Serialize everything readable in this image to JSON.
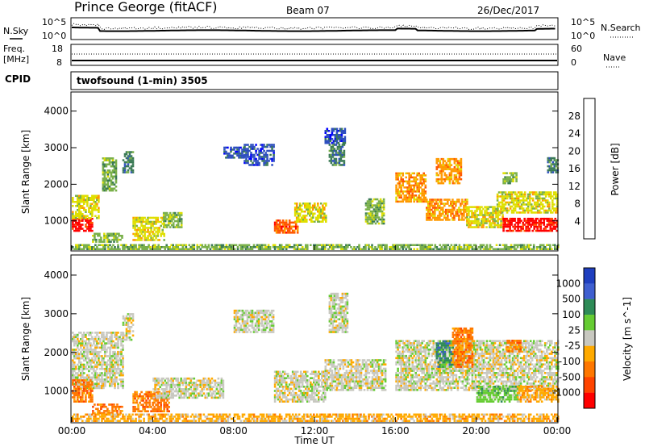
{
  "header": {
    "station": "Prince George (fitACF)",
    "beam": "Beam 07",
    "date": "26/Dec/2017"
  },
  "noise_panel": {
    "left_label": "N.Sky",
    "right_label": "N.Search",
    "left_ticks": [
      "10^5",
      "10^0"
    ],
    "right_ticks": [
      "10^5",
      "10^0"
    ]
  },
  "freq_panel": {
    "label_line1": "Freq.",
    "label_line2": "[MHz]",
    "left_ticks": [
      "18",
      "8"
    ],
    "right_label": "Nave",
    "right_ticks": [
      "60",
      "0"
    ]
  },
  "cpid": {
    "label": "CPID",
    "program": "twofsound (1-min) 3505"
  },
  "colors": {
    "background": "#ffffff",
    "gray_scatter": "#c8c8c0",
    "power_scale": [
      "#0000ff",
      "#2e4fbf",
      "#3a7a55",
      "#7ab04a",
      "#dfdf00",
      "#ff9900",
      "#ff5500",
      "#ff0000"
    ],
    "velocity_scale": [
      "#1f3fbf",
      "#3f5fd0",
      "#2e8b57",
      "#66cc33",
      "#c8c8c0",
      "#ffaa00",
      "#ff7700",
      "#ff4400",
      "#ff0000"
    ]
  },
  "chart_data": [
    {
      "type": "heatmap",
      "title": "Power",
      "ylabel": "Slant Range [km]",
      "y_ticks": [
        "1000",
        "2000",
        "3000",
        "4000"
      ],
      "ylim": [
        200,
        4500
      ],
      "colorbar_label": "Power [dB]",
      "colorbar_ticks": [
        "4",
        "8",
        "12",
        "16",
        "20",
        "24",
        "28"
      ],
      "regions": [
        {
          "t0": 0.0,
          "t1": 1.0,
          "r0": 700,
          "r1": 1050,
          "level": 7
        },
        {
          "t0": 0.0,
          "t1": 1.3,
          "r0": 1050,
          "r1": 1700,
          "level": 4
        },
        {
          "t0": 1.5,
          "t1": 2.2,
          "r0": 1800,
          "r1": 2700,
          "level": 3
        },
        {
          "t0": 1.0,
          "t1": 2.5,
          "r0": 400,
          "r1": 650,
          "level": 3
        },
        {
          "t0": 3.0,
          "t1": 4.6,
          "r0": 450,
          "r1": 1100,
          "level": 4
        },
        {
          "t0": 2.5,
          "t1": 3.0,
          "r0": 2300,
          "r1": 2900,
          "level": 2
        },
        {
          "t0": 4.5,
          "t1": 5.4,
          "r0": 800,
          "r1": 1200,
          "level": 3
        },
        {
          "t0": 8.5,
          "t1": 10.0,
          "r0": 2500,
          "r1": 3100,
          "level": 1
        },
        {
          "t0": 7.5,
          "t1": 8.5,
          "r0": 2700,
          "r1": 3000,
          "level": 1
        },
        {
          "t0": 10.0,
          "t1": 11.2,
          "r0": 650,
          "r1": 1000,
          "level": 6
        },
        {
          "t0": 11.0,
          "t1": 12.6,
          "r0": 950,
          "r1": 1500,
          "level": 4
        },
        {
          "t0": 12.7,
          "t1": 13.5,
          "r0": 2500,
          "r1": 3100,
          "level": 2
        },
        {
          "t0": 12.5,
          "t1": 13.5,
          "r0": 3100,
          "r1": 3500,
          "level": 1
        },
        {
          "t0": 14.5,
          "t1": 15.4,
          "r0": 900,
          "r1": 1600,
          "level": 3
        },
        {
          "t0": 16.0,
          "t1": 17.5,
          "r0": 1500,
          "r1": 2300,
          "level": 5
        },
        {
          "t0": 17.5,
          "t1": 19.5,
          "r0": 1000,
          "r1": 1600,
          "level": 5
        },
        {
          "t0": 18.0,
          "t1": 19.2,
          "r0": 2000,
          "r1": 2700,
          "level": 5
        },
        {
          "t0": 19.5,
          "t1": 21.3,
          "r0": 800,
          "r1": 1400,
          "level": 4
        },
        {
          "t0": 21.3,
          "t1": 24.0,
          "r0": 700,
          "r1": 1050,
          "level": 7
        },
        {
          "t0": 21.0,
          "t1": 24.0,
          "r0": 1200,
          "r1": 1800,
          "level": 4
        },
        {
          "t0": 23.5,
          "t1": 24.0,
          "r0": 2300,
          "r1": 2700,
          "level": 2
        },
        {
          "t0": 21.3,
          "t1": 22.0,
          "r0": 2000,
          "r1": 2300,
          "level": 3
        },
        {
          "t0": 0.0,
          "t1": 24.0,
          "r0": 200,
          "r1": 350,
          "level": 3
        }
      ]
    },
    {
      "type": "heatmap",
      "title": "Velocity",
      "ylabel": "Slant Range [km]",
      "y_ticks": [
        "1000",
        "2000",
        "3000",
        "4000"
      ],
      "ylim": [
        200,
        4500
      ],
      "x_ticks": [
        "00:00",
        "04:00",
        "08:00",
        "12:00",
        "16:00",
        "20:00",
        "00:00"
      ],
      "xlabel": "Time UT",
      "xlim": [
        0,
        24
      ],
      "colorbar_label": "Velocity [m s^-1]",
      "colorbar_ticks": [
        "1000",
        "500",
        "100",
        "25",
        "-25",
        "-100",
        "-500",
        "-1000"
      ],
      "regions": [
        {
          "t0": 0.0,
          "t1": 2.5,
          "r0": 1050,
          "r1": 2500,
          "level": 4
        },
        {
          "t0": 0.0,
          "t1": 1.0,
          "r0": 700,
          "r1": 1300,
          "level": 6
        },
        {
          "t0": 1.0,
          "t1": 2.5,
          "r0": 400,
          "r1": 650,
          "level": 6
        },
        {
          "t0": 2.5,
          "t1": 3.0,
          "r0": 2300,
          "r1": 3000,
          "level": 4
        },
        {
          "t0": 3.0,
          "t1": 4.8,
          "r0": 450,
          "r1": 1000,
          "level": 6
        },
        {
          "t0": 4.0,
          "t1": 7.5,
          "r0": 800,
          "r1": 1300,
          "level": 4
        },
        {
          "t0": 8.0,
          "t1": 10.0,
          "r0": 2500,
          "r1": 3100,
          "level": 4
        },
        {
          "t0": 10.0,
          "t1": 12.5,
          "r0": 700,
          "r1": 1500,
          "level": 4
        },
        {
          "t0": 12.5,
          "t1": 15.5,
          "r0": 1000,
          "r1": 1800,
          "level": 4
        },
        {
          "t0": 12.7,
          "t1": 13.6,
          "r0": 2500,
          "r1": 3500,
          "level": 4
        },
        {
          "t0": 16.0,
          "t1": 24.0,
          "r0": 1000,
          "r1": 2300,
          "level": 4
        },
        {
          "t0": 18.0,
          "t1": 18.8,
          "r0": 1600,
          "r1": 2300,
          "level": 2
        },
        {
          "t0": 18.8,
          "t1": 19.8,
          "r0": 1600,
          "r1": 2600,
          "level": 6
        },
        {
          "t0": 20.0,
          "t1": 22.0,
          "r0": 700,
          "r1": 1100,
          "level": 3
        },
        {
          "t0": 22.0,
          "t1": 24.0,
          "r0": 700,
          "r1": 1100,
          "level": 5
        },
        {
          "t0": 21.5,
          "t1": 22.2,
          "r0": 2000,
          "r1": 2300,
          "level": 6
        },
        {
          "t0": 0.0,
          "t1": 24.0,
          "r0": 200,
          "r1": 400,
          "level": 5
        }
      ]
    }
  ]
}
